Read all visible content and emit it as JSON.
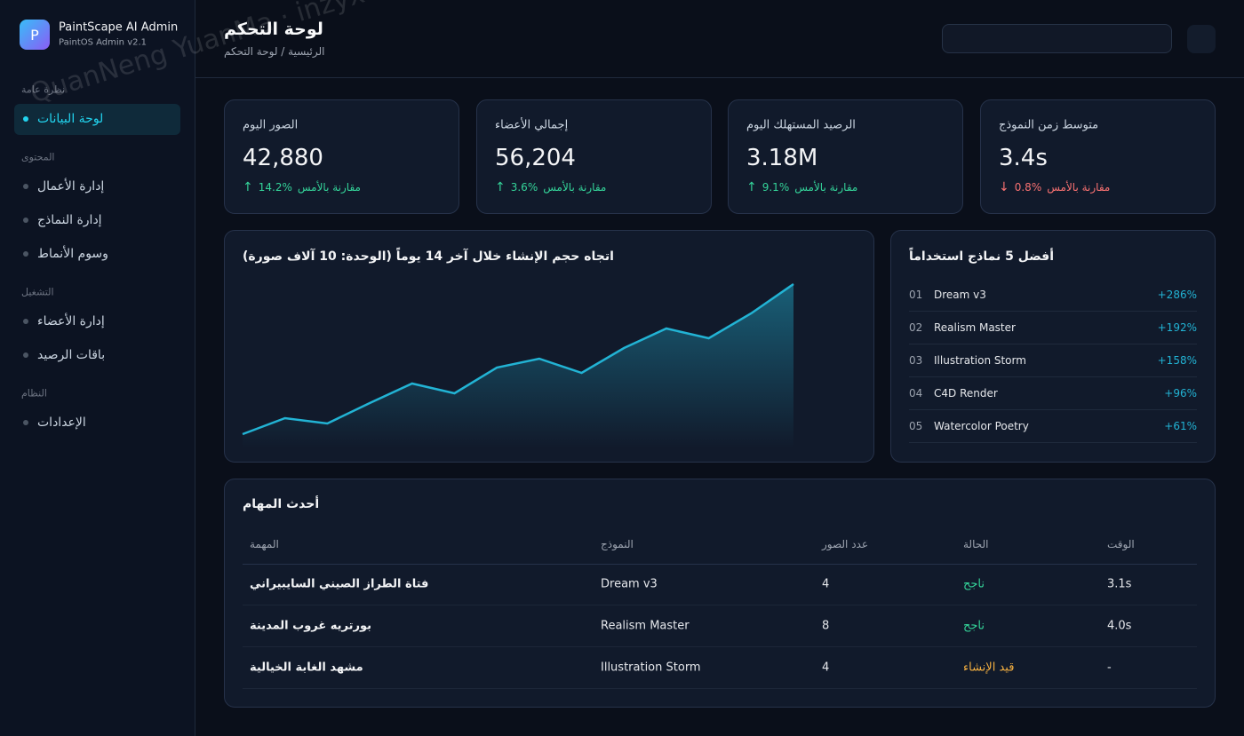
{
  "sidebar": {
    "logo": "P",
    "app_name": "PaintScape AI Admin",
    "version": "PaintOS Admin v2.1",
    "sections": [
      {
        "title": "نظرة عامة",
        "items": [
          {
            "label": "لوحة البيانات",
            "active": true
          }
        ]
      },
      {
        "title": "المحتوى",
        "items": [
          {
            "label": "إدارة الأعمال",
            "active": false
          },
          {
            "label": "إدارة النماذج",
            "active": false
          },
          {
            "label": "وسوم الأنماط",
            "active": false
          }
        ]
      },
      {
        "title": "التشغيل",
        "items": [
          {
            "label": "إدارة الأعضاء",
            "active": false
          },
          {
            "label": "باقات الرصيد",
            "active": false
          }
        ]
      },
      {
        "title": "النظام",
        "items": [
          {
            "label": "الإعدادات",
            "active": false
          }
        ]
      }
    ]
  },
  "header": {
    "title": "لوحة التحكم",
    "breadcrumb": "الرئيسية / لوحة التحكم"
  },
  "stats": [
    {
      "label": "الصور اليوم",
      "value": "42,880",
      "arrow": "↑",
      "change": "14.2%",
      "note": "مقارنة بالأمس",
      "color": "#34d399"
    },
    {
      "label": "إجمالي الأعضاء",
      "value": "56,204",
      "arrow": "↑",
      "change": "3.6%",
      "note": "مقارنة بالأمس",
      "color": "#34d399"
    },
    {
      "label": "الرصيد المستهلك اليوم",
      "value": "3.18M",
      "arrow": "↑",
      "change": "9.1%",
      "note": "مقارنة بالأمس",
      "color": "#34d399"
    },
    {
      "label": "متوسط زمن النموذج",
      "value": "3.4s",
      "arrow": "↓",
      "change": "0.8%",
      "note": "مقارنة بالأمس",
      "color": "#f87171"
    }
  ],
  "chart_data": {
    "type": "area",
    "title": "اتجاه حجم الإنشاء خلال آخر 14 يوماً (الوحدة: 10 آلاف صورة)",
    "categories": [
      null,
      null,
      null,
      null,
      null,
      null,
      null,
      null,
      null,
      null,
      null,
      null,
      null,
      null
    ],
    "values": [
      0.8,
      1.7,
      1.4,
      2.55,
      3.65,
      3.1,
      4.55,
      5.05,
      4.25,
      5.65,
      6.75,
      6.2,
      7.6,
      9.25
    ],
    "color": "#22b3d4",
    "ylim": [
      0,
      10
    ]
  },
  "top_models": {
    "title": "أفضل 5 نماذج استخداماً",
    "rows": [
      {
        "rank": "01",
        "name": "Dream v3",
        "growth": "+286%"
      },
      {
        "rank": "02",
        "name": "Realism Master",
        "growth": "+192%"
      },
      {
        "rank": "03",
        "name": "Illustration Storm",
        "growth": "+158%"
      },
      {
        "rank": "04",
        "name": "C4D Render",
        "growth": "+96%"
      },
      {
        "rank": "05",
        "name": "Watercolor Poetry",
        "growth": "+61%"
      }
    ]
  },
  "tasks": {
    "title": "أحدث المهام",
    "columns": [
      "المهمة",
      "النموذج",
      "عدد الصور",
      "الحالة",
      "الوقت"
    ],
    "rows": [
      {
        "cells": [
          "فتاة الطراز الصيني السايبيراني",
          "Dream v3",
          "4",
          "ناجح",
          "3.1s"
        ],
        "status_color": "#34d399"
      },
      {
        "cells": [
          "بورتريه غروب المدينة",
          "Realism Master",
          "8",
          "ناجح",
          "4.0s"
        ],
        "status_color": "#34d399"
      },
      {
        "cells": [
          "مشهد الغابة الخيالية",
          "Illustration Storm",
          "4",
          "قيد الإنشاء",
          "-"
        ],
        "status_color": "#f5b041"
      }
    ]
  },
  "watermark": "QuanNeng YuanMa · inzyxuashop.com"
}
